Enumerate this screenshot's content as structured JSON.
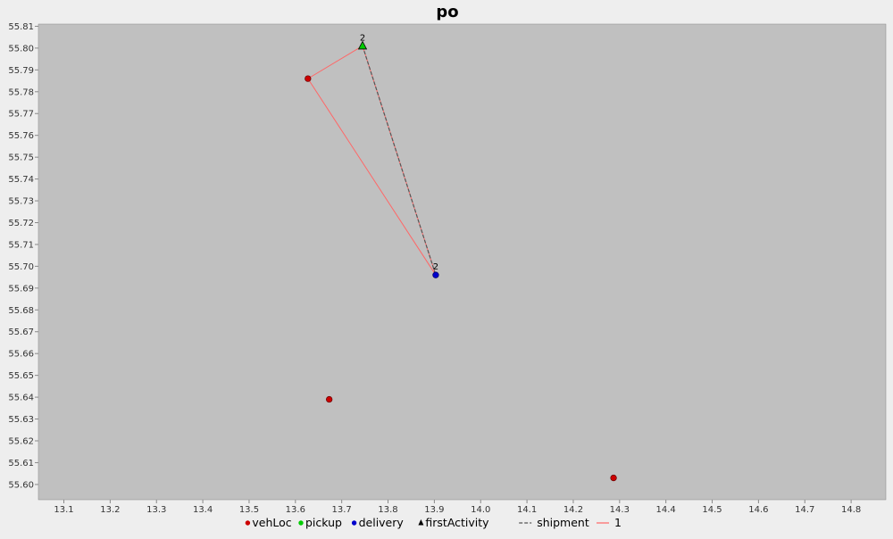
{
  "chart_data": {
    "type": "scatter",
    "title": "po",
    "xlabel": "",
    "ylabel": "",
    "xlim": [
      13.045,
      14.875
    ],
    "ylim": [
      55.593,
      55.811
    ],
    "x_ticks": [
      "13.1",
      "13.2",
      "13.3",
      "13.4",
      "13.5",
      "13.6",
      "13.7",
      "13.8",
      "13.9",
      "14.0",
      "14.1",
      "14.2",
      "14.3",
      "14.4",
      "14.5",
      "14.6",
      "14.7",
      "14.8"
    ],
    "y_ticks": [
      "55.60",
      "55.61",
      "55.62",
      "55.63",
      "55.64",
      "55.65",
      "55.66",
      "55.67",
      "55.68",
      "55.69",
      "55.70",
      "55.71",
      "55.72",
      "55.73",
      "55.74",
      "55.75",
      "55.76",
      "55.77",
      "55.78",
      "55.79",
      "55.80",
      "55.81"
    ],
    "grid": false,
    "legend_position": "bottom",
    "colors": {
      "plot_background": "#c0c0c0",
      "page_background": "#eeeeee",
      "vehLoc": "#cc0000",
      "pickup": "#00cc00",
      "delivery": "#0000cc",
      "shipment": "#555555",
      "route": "#ff6666"
    },
    "series": [
      {
        "name": "vehLoc",
        "marker": "circle",
        "points": [
          [
            13.627,
            55.786
          ],
          [
            13.673,
            55.639
          ],
          [
            14.287,
            55.603
          ]
        ]
      },
      {
        "name": "pickup",
        "marker": "circle",
        "points": [
          [
            13.745,
            55.801
          ]
        ]
      },
      {
        "name": "delivery",
        "marker": "circle",
        "points": [
          [
            13.903,
            55.696
          ]
        ]
      },
      {
        "name": "firstActivity",
        "marker": "triangle",
        "points": [
          [
            13.745,
            55.801
          ]
        ]
      },
      {
        "name": "shipment",
        "style": "dashed",
        "points": [
          [
            13.745,
            55.801
          ],
          [
            13.903,
            55.696
          ]
        ]
      },
      {
        "name": "1",
        "style": "solid",
        "points": [
          [
            13.627,
            55.786
          ],
          [
            13.745,
            55.801
          ],
          [
            13.903,
            55.696
          ],
          [
            13.627,
            55.786
          ]
        ]
      }
    ],
    "annotations": [
      {
        "text": "2",
        "x": 13.745,
        "y": 55.801
      },
      {
        "text": "2",
        "x": 13.903,
        "y": 55.696
      }
    ]
  }
}
